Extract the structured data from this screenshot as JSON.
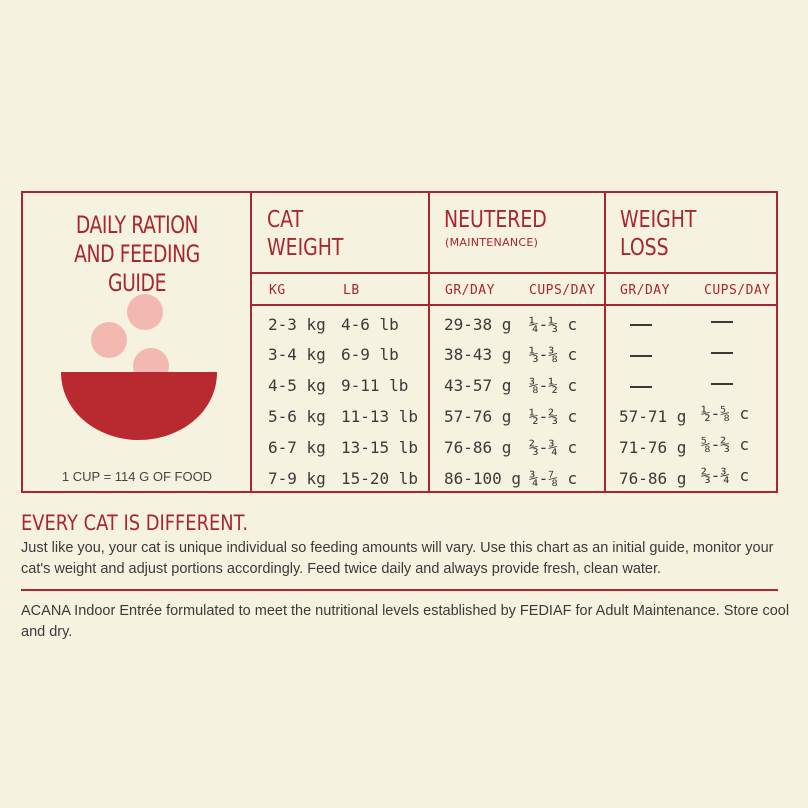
{
  "guide": {
    "title_line1": "DAILY RATION",
    "title_line2": "AND FEEDING GUIDE",
    "cup_note": "1 CUP = 114 G OF FOOD",
    "columns": {
      "cat_weight": {
        "line1": "CAT",
        "line2": "WEIGHT"
      },
      "neutered": {
        "line1": "NEUTERED",
        "sub": "(MAINTENANCE)"
      },
      "weight_loss": {
        "line1": "WEIGHT",
        "line2": "LOSS"
      }
    },
    "sub_headers": {
      "kg": "KG",
      "lb": "LB",
      "neutered_gr": "GR/DAY",
      "neutered_cups": "CUPS/DAY",
      "loss_gr": "GR/DAY",
      "loss_cups": "CUPS/DAY"
    },
    "rows": [
      {
        "kg": "2-3 kg",
        "lb": "4-6 lb",
        "n_gr": "29-38 g",
        "n_cups": "¼-⅓ c",
        "l_gr": "",
        "l_cups": ""
      },
      {
        "kg": "3-4 kg",
        "lb": "6-9 lb",
        "n_gr": "38-43 g",
        "n_cups": "⅓-⅜ c",
        "l_gr": "",
        "l_cups": ""
      },
      {
        "kg": "4-5 kg",
        "lb": "9-11 lb",
        "n_gr": "43-57 g",
        "n_cups": "⅜-½ c",
        "l_gr": "",
        "l_cups": ""
      },
      {
        "kg": "5-6 kg",
        "lb": "11-13 lb",
        "n_gr": "57-76 g",
        "n_cups": "½-⅔ c",
        "l_gr": "57-71 g",
        "l_cups": "½-⅝ c"
      },
      {
        "kg": "6-7 kg",
        "lb": "13-15 lb",
        "n_gr": "76-86 g",
        "n_cups": "⅔-¾ c",
        "l_gr": "71-76 g",
        "l_cups": "⅝-⅔ c"
      },
      {
        "kg": "7-9 kg",
        "lb": "15-20 lb",
        "n_gr": "86-100 g",
        "n_cups": "¾-⅞ c",
        "l_gr": "76-86 g",
        "l_cups": "⅔-¾ c"
      }
    ]
  },
  "notice": {
    "title": "EVERY CAT IS DIFFERENT.",
    "body": "Just like you, your cat is unique individual so feeding amounts will vary. Use this chart as an initial guide, monitor your cat's weight and adjust portions accordingly. Feed twice daily and always provide fresh, clean water."
  },
  "footer": {
    "text": "ACANA Indoor Entrée formulated to meet the nutritional levels established by FEDIAF  for Adult Maintenance. Store cool and dry."
  },
  "colors": {
    "accent": "#a8262f",
    "background": "#f6f2e0",
    "bowl": "#b82a30",
    "kibble": "#f3b8b0"
  },
  "icons": [
    "food-bowl-icon"
  ]
}
